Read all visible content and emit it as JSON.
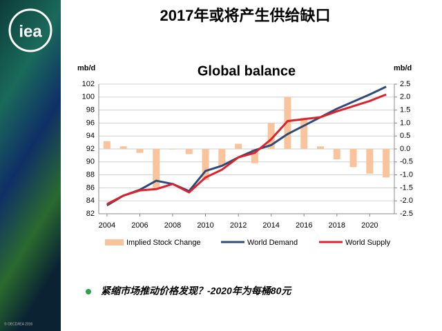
{
  "header": {
    "title": "2017年或将产生供给缺口"
  },
  "logo": "iea",
  "footer": "© OECD/IEA 2016",
  "chart_data": {
    "type": "combo",
    "title": "Global balance",
    "ylabel": "mb/d",
    "y2label": "mb/d",
    "x": [
      2004,
      2005,
      2006,
      2007,
      2008,
      2009,
      2010,
      2011,
      2012,
      2013,
      2014,
      2015,
      2016,
      2017,
      2018,
      2019,
      2020,
      2021
    ],
    "xlim": [
      2003.5,
      2021.5
    ],
    "xticks": [
      2004,
      2006,
      2008,
      2010,
      2012,
      2014,
      2016,
      2018,
      2020
    ],
    "ylim": [
      82,
      102
    ],
    "yticks": [
      82,
      84,
      86,
      88,
      90,
      92,
      94,
      96,
      98,
      100,
      102
    ],
    "y2lim": [
      -2.5,
      2.5
    ],
    "y2ticks": [
      -2.5,
      {
        "value": -2,
        "label": "-2.0"
      },
      -1.5,
      {
        "value": -1,
        "label": "-1.0"
      },
      -0.5,
      {
        "value": 0,
        "label": "0.0"
      },
      0.5,
      {
        "value": 1,
        "label": "1.0"
      },
      1.5,
      {
        "value": 2,
        "label": "2.0"
      },
      2.5
    ],
    "grid": true,
    "series": [
      {
        "name": "Implied Stock Change",
        "type": "bar",
        "axis": "y2",
        "color": "#f9c39c",
        "values": [
          0.3,
          0.1,
          -0.15,
          -1.55,
          -0.02,
          -0.2,
          -1.2,
          -0.65,
          0.2,
          -0.55,
          1.0,
          2.0,
          1.2,
          0.1,
          -0.4,
          -0.7,
          -0.95,
          -1.1
        ]
      },
      {
        "name": "World Demand",
        "type": "line",
        "color": "#2e4a7a",
        "values": [
          83.3,
          84.8,
          85.7,
          87.1,
          86.6,
          85.5,
          88.6,
          89.4,
          90.7,
          91.8,
          92.6,
          94.3,
          95.6,
          96.9,
          98.2,
          99.3,
          100.4,
          101.6
        ]
      },
      {
        "name": "World Supply",
        "type": "line",
        "color": "#e0202a",
        "values": [
          83.5,
          84.8,
          85.6,
          85.8,
          86.6,
          85.3,
          87.6,
          88.8,
          90.7,
          91.4,
          93.5,
          96.3,
          96.6,
          96.9,
          97.8,
          98.6,
          99.4,
          100.4
        ]
      }
    ]
  },
  "bullet": "紧缩市场推动价格发现？-2020年为每桶80元"
}
